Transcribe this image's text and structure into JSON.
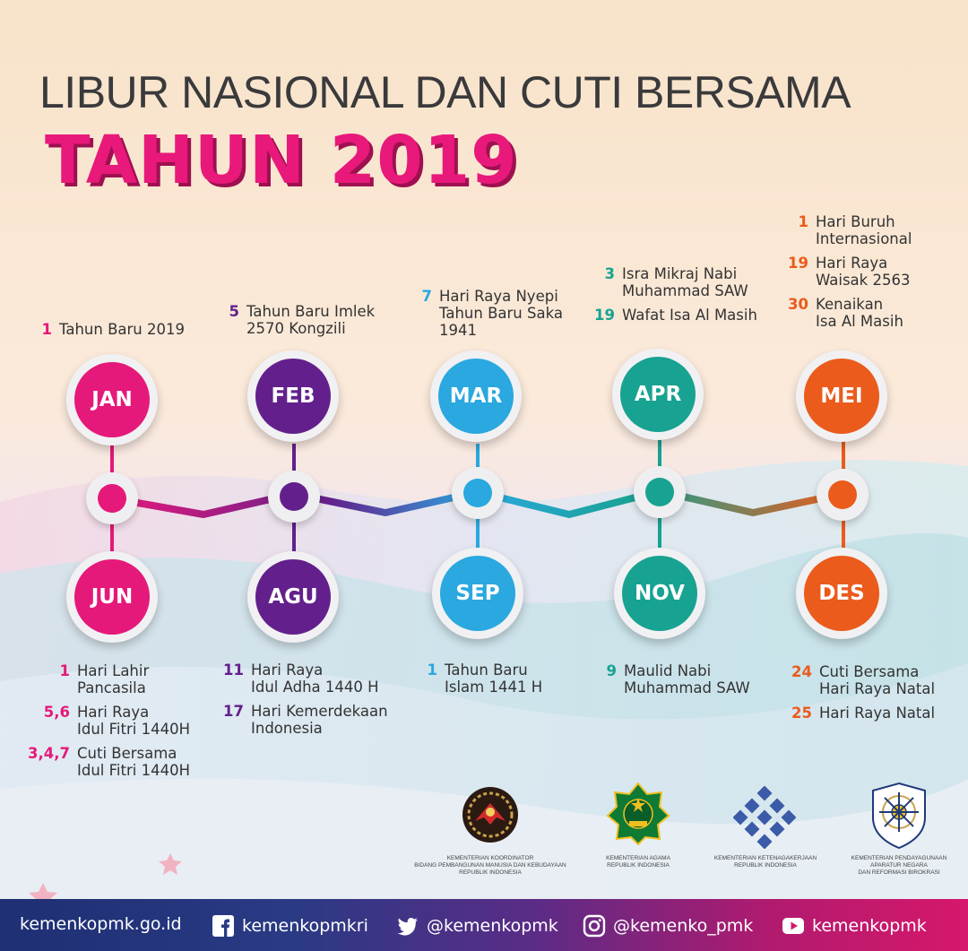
{
  "title": "LIBUR NASIONAL DAN CUTI BERSAMA",
  "subtitle": "TAHUN 2019",
  "colors": {
    "jan": "#e5197a",
    "feb": "#63208c",
    "mar": "#2aa8df",
    "apr": "#18a291",
    "mei": "#ea5b1c",
    "title_pink": "#e8197a"
  },
  "months_top": [
    {
      "label": "JAN",
      "events": [
        {
          "date": "1",
          "text": "Tahun Baru 2019"
        }
      ]
    },
    {
      "label": "FEB",
      "events": [
        {
          "date": "5",
          "text": "Tahun Baru Imlek\n2570 Kongzili"
        }
      ]
    },
    {
      "label": "MAR",
      "events": [
        {
          "date": "7",
          "text": "Hari Raya Nyepi\nTahun Baru Saka\n1941"
        }
      ]
    },
    {
      "label": "APR",
      "events": [
        {
          "date": "3",
          "text": "Isra Mikraj Nabi\nMuhammad SAW"
        },
        {
          "date": "19",
          "text": "Wafat Isa Al Masih"
        }
      ]
    },
    {
      "label": "MEI",
      "events": [
        {
          "date": "1",
          "text": "Hari Buruh\nInternasional"
        },
        {
          "date": "19",
          "text": "Hari Raya\nWaisak 2563"
        },
        {
          "date": "30",
          "text": "Kenaikan\nIsa Al Masih"
        }
      ]
    }
  ],
  "months_bottom": [
    {
      "label": "JUN",
      "events": [
        {
          "date": "1",
          "text": "Hari Lahir\nPancasila"
        },
        {
          "date": "5,6",
          "text": "Hari Raya\nIdul Fitri 1440H"
        },
        {
          "date": "3,4,7",
          "text": "Cuti Bersama\nIdul Fitri 1440H"
        }
      ]
    },
    {
      "label": "AGU",
      "events": [
        {
          "date": "11",
          "text": "Hari Raya\nIdul Adha 1440 H"
        },
        {
          "date": "17",
          "text": "Hari Kemerdekaan\nIndonesia"
        }
      ]
    },
    {
      "label": "SEP",
      "events": [
        {
          "date": "1",
          "text": "Tahun Baru\nIslam 1441 H"
        }
      ]
    },
    {
      "label": "NOV",
      "events": [
        {
          "date": "9",
          "text": "Maulid Nabi\nMuhammad SAW"
        }
      ]
    },
    {
      "label": "DES",
      "events": [
        {
          "date": "24",
          "text": "Cuti Bersama\nHari Raya Natal"
        },
        {
          "date": "25",
          "text": "Hari Raya Natal"
        }
      ]
    }
  ],
  "logos": [
    {
      "icon": "kemenko-pmk-logo-icon",
      "caption": "KEMENTERIAN KOORDINATOR\nBIDANG PEMBANGUNAN MANUSIA DAN KEBUDAYAAN\nREPUBLIK INDONESIA"
    },
    {
      "icon": "kemenag-logo-icon",
      "caption": "KEMENTERIAN AGAMA\nREPUBLIK INDONESIA"
    },
    {
      "icon": "kemnaker-logo-icon",
      "caption": "KEMENTERIAN KETENAGAKERJAAN\nREPUBLIK INDONESIA"
    },
    {
      "icon": "kemenpan-rb-logo-icon",
      "caption": "KEMENTERIAN PENDAYAGUNAAN\nAPARATUR NEGARA\nDAN REFORMASI BIROKRASI"
    }
  ],
  "footer": {
    "website": "kemenkopmk.go.id",
    "facebook": "kemenkopmkri",
    "twitter": "@kemenkopmk",
    "instagram": "@kemenko_pmk",
    "youtube": "kemenkopmk"
  }
}
